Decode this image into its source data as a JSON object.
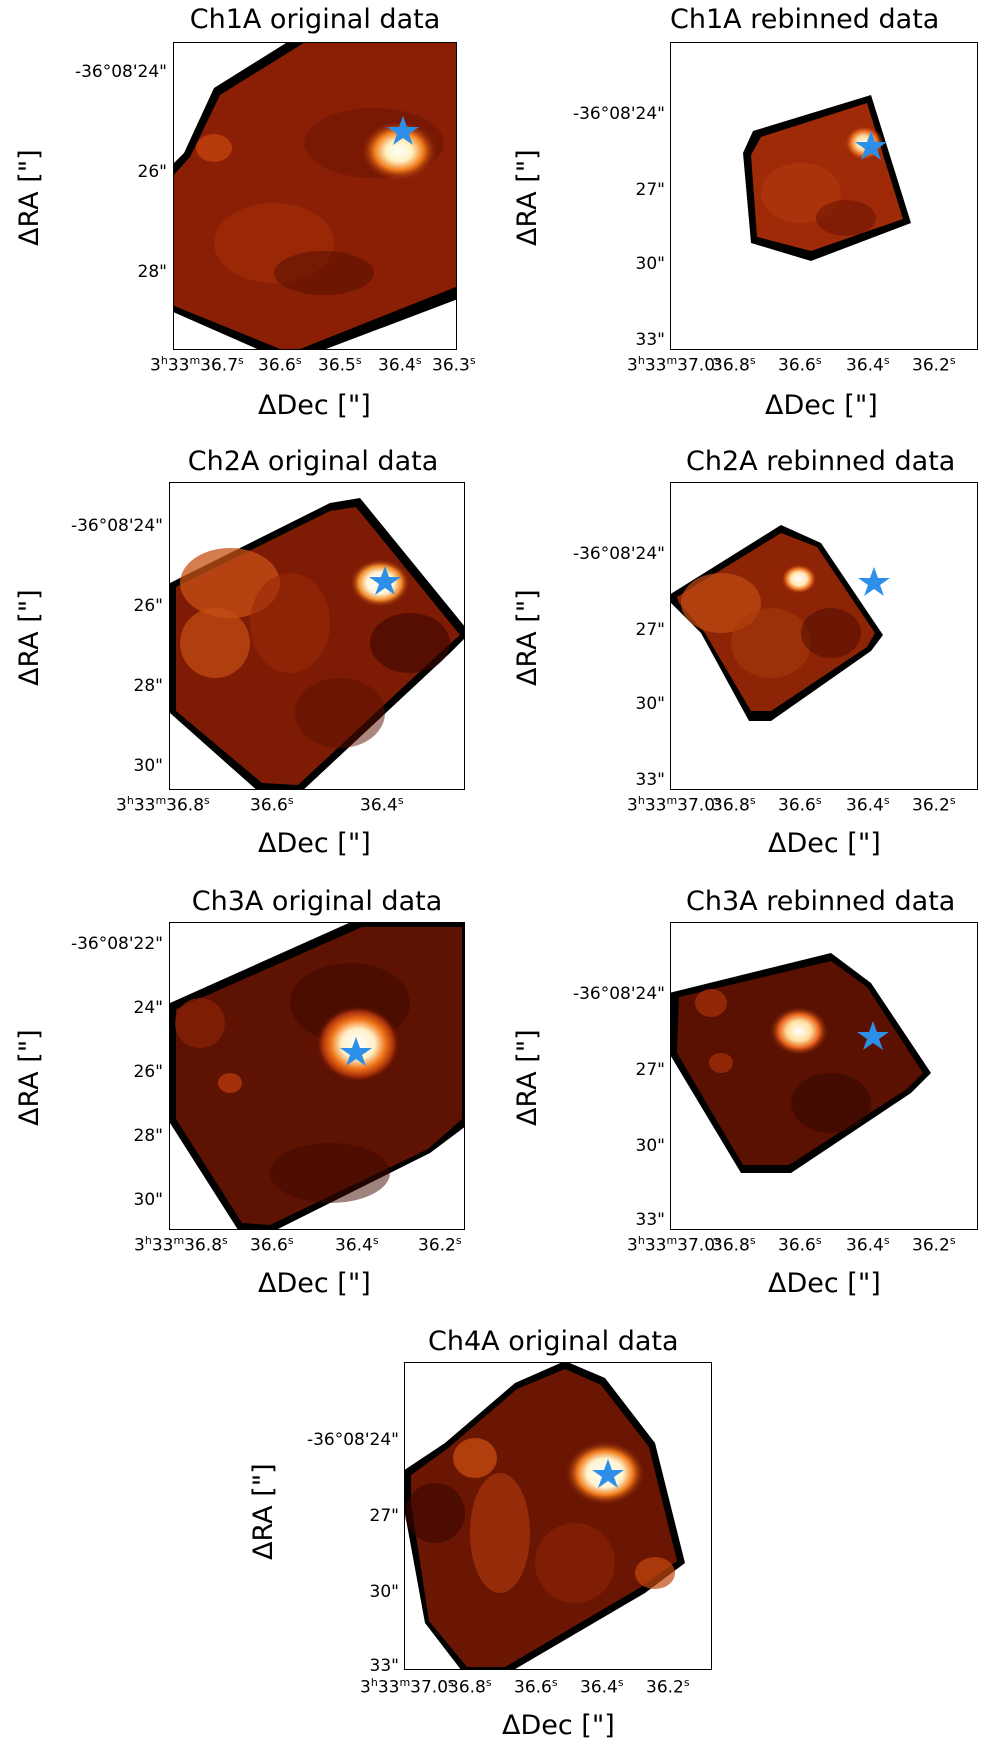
{
  "figure": {
    "xlabel": "ΔDec [\"]",
    "ylabel": "ΔRA [\"]",
    "colors": {
      "star": "#2e8fe8",
      "colormap": "gist_heat"
    },
    "star_icon": "star-icon"
  },
  "panels": [
    {
      "id": "ch1a-original",
      "title": "Ch1A original data",
      "yticks": [
        "-36°08'24\"",
        "26\"",
        "28\""
      ],
      "xticks_ra_prefix": "3h33m36.7s",
      "xticks": [
        "36.6",
        "36.5",
        "36.4",
        "36.3"
      ]
    },
    {
      "id": "ch1a-rebinned",
      "title": "Ch1A rebinned data",
      "yticks": [
        "-36°08'24\"",
        "27\"",
        "30\"",
        "33\""
      ],
      "xticks_ra_prefix": "3h33m37.0s",
      "xticks": [
        "36.8",
        "36.6",
        "36.4",
        "36.2"
      ]
    },
    {
      "id": "ch2a-original",
      "title": "Ch2A original data",
      "yticks": [
        "-36°08'24\"",
        "26\"",
        "28\"",
        "30\""
      ],
      "xticks_ra_prefix": "3h33m36.8s",
      "xticks": [
        "36.6",
        "36.4"
      ]
    },
    {
      "id": "ch2a-rebinned",
      "title": "Ch2A rebinned data",
      "yticks": [
        "-36°08'24\"",
        "27\"",
        "30\"",
        "33\""
      ],
      "xticks_ra_prefix": "3h33m37.0s",
      "xticks": [
        "36.8",
        "36.6",
        "36.4",
        "36.2"
      ]
    },
    {
      "id": "ch3a-original",
      "title": "Ch3A original data",
      "yticks": [
        "-36°08'22\"",
        "24\"",
        "26\"",
        "28\"",
        "30\""
      ],
      "xticks_ra_prefix": "3h33m36.8s",
      "xticks": [
        "36.6",
        "36.4",
        "36.2"
      ]
    },
    {
      "id": "ch3a-rebinned",
      "title": "Ch3A rebinned data",
      "yticks": [
        "-36°08'24\"",
        "27\"",
        "30\"",
        "33\""
      ],
      "xticks_ra_prefix": "3h33m37.0s",
      "xticks": [
        "36.8",
        "36.6",
        "36.4",
        "36.2"
      ]
    },
    {
      "id": "ch4a-original",
      "title": "Ch4A original data",
      "yticks": [
        "-36°08'24\"",
        "27\"",
        "30\"",
        "33\""
      ],
      "xticks_ra_prefix": "3h33m37.0s",
      "xticks": [
        "36.8",
        "36.6",
        "36.4",
        "36.2"
      ]
    }
  ]
}
